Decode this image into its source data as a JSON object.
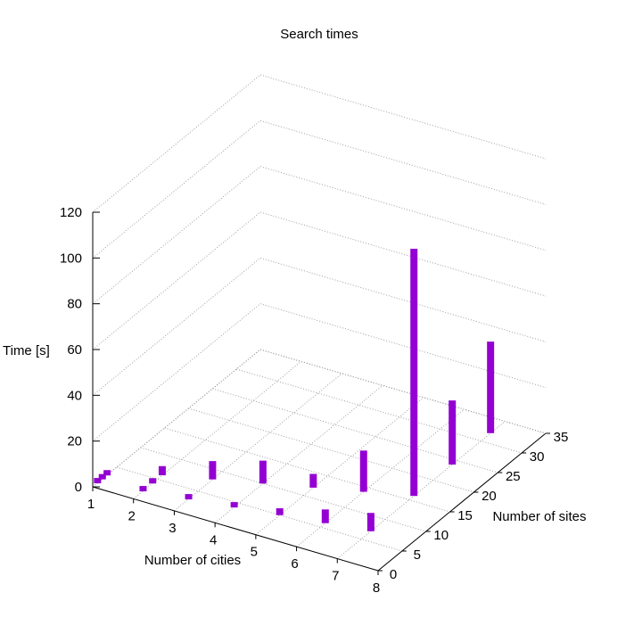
{
  "chart_data": {
    "type": "bar3d",
    "title": "Search times",
    "xlabel": "Number of cities",
    "ylabel": "Number of sites",
    "zlabel": "Time [s]",
    "xlim": [
      1,
      8
    ],
    "ylim": [
      0,
      35
    ],
    "zlim": [
      0,
      120
    ],
    "xticks": [
      "1",
      "2",
      "3",
      "4",
      "5",
      "6",
      "7",
      "8"
    ],
    "yticks": [
      "0",
      "5",
      "10",
      "15",
      "20",
      "25",
      "30",
      "35"
    ],
    "zticks": [
      "0",
      "20",
      "40",
      "60",
      "80",
      "100",
      "120"
    ],
    "grid": true,
    "bar_color": "#9400D3",
    "points": [
      {
        "x": 1,
        "y": 1,
        "z_low": 0,
        "z_high": 2
      },
      {
        "x": 1,
        "y": 2,
        "z_low": 0,
        "z_high": 2
      },
      {
        "x": 1,
        "y": 3,
        "z_low": 0,
        "z_high": 2
      },
      {
        "x": 2,
        "y": 2,
        "z_low": 0,
        "z_high": 2
      },
      {
        "x": 2,
        "y": 4,
        "z_low": 0,
        "z_high": 2
      },
      {
        "x": 2,
        "y": 6,
        "z_low": 0,
        "z_high": 4
      },
      {
        "x": 3,
        "y": 3,
        "z_low": 0,
        "z_high": 2
      },
      {
        "x": 3,
        "y": 8,
        "z_low": 0,
        "z_high": 8
      },
      {
        "x": 4,
        "y": 4,
        "z_low": 0,
        "z_high": 2
      },
      {
        "x": 4,
        "y": 10,
        "z_low": 0,
        "z_high": 10
      },
      {
        "x": 5,
        "y": 5,
        "z_low": 0,
        "z_high": 3
      },
      {
        "x": 5,
        "y": 12,
        "z_low": 0,
        "z_high": 6
      },
      {
        "x": 6,
        "y": 6,
        "z_low": 0,
        "z_high": 6
      },
      {
        "x": 6,
        "y": 14,
        "z_low": 0,
        "z_high": 18
      },
      {
        "x": 7,
        "y": 7,
        "z_low": 0,
        "z_high": 8
      },
      {
        "x": 7,
        "y": 16,
        "z_low": 0,
        "z_high": 108
      },
      {
        "x": 7,
        "y": 24,
        "z_low": 0,
        "z_high": 28
      },
      {
        "x": 7,
        "y": 32,
        "z_low": 0,
        "z_high": 40
      }
    ]
  }
}
